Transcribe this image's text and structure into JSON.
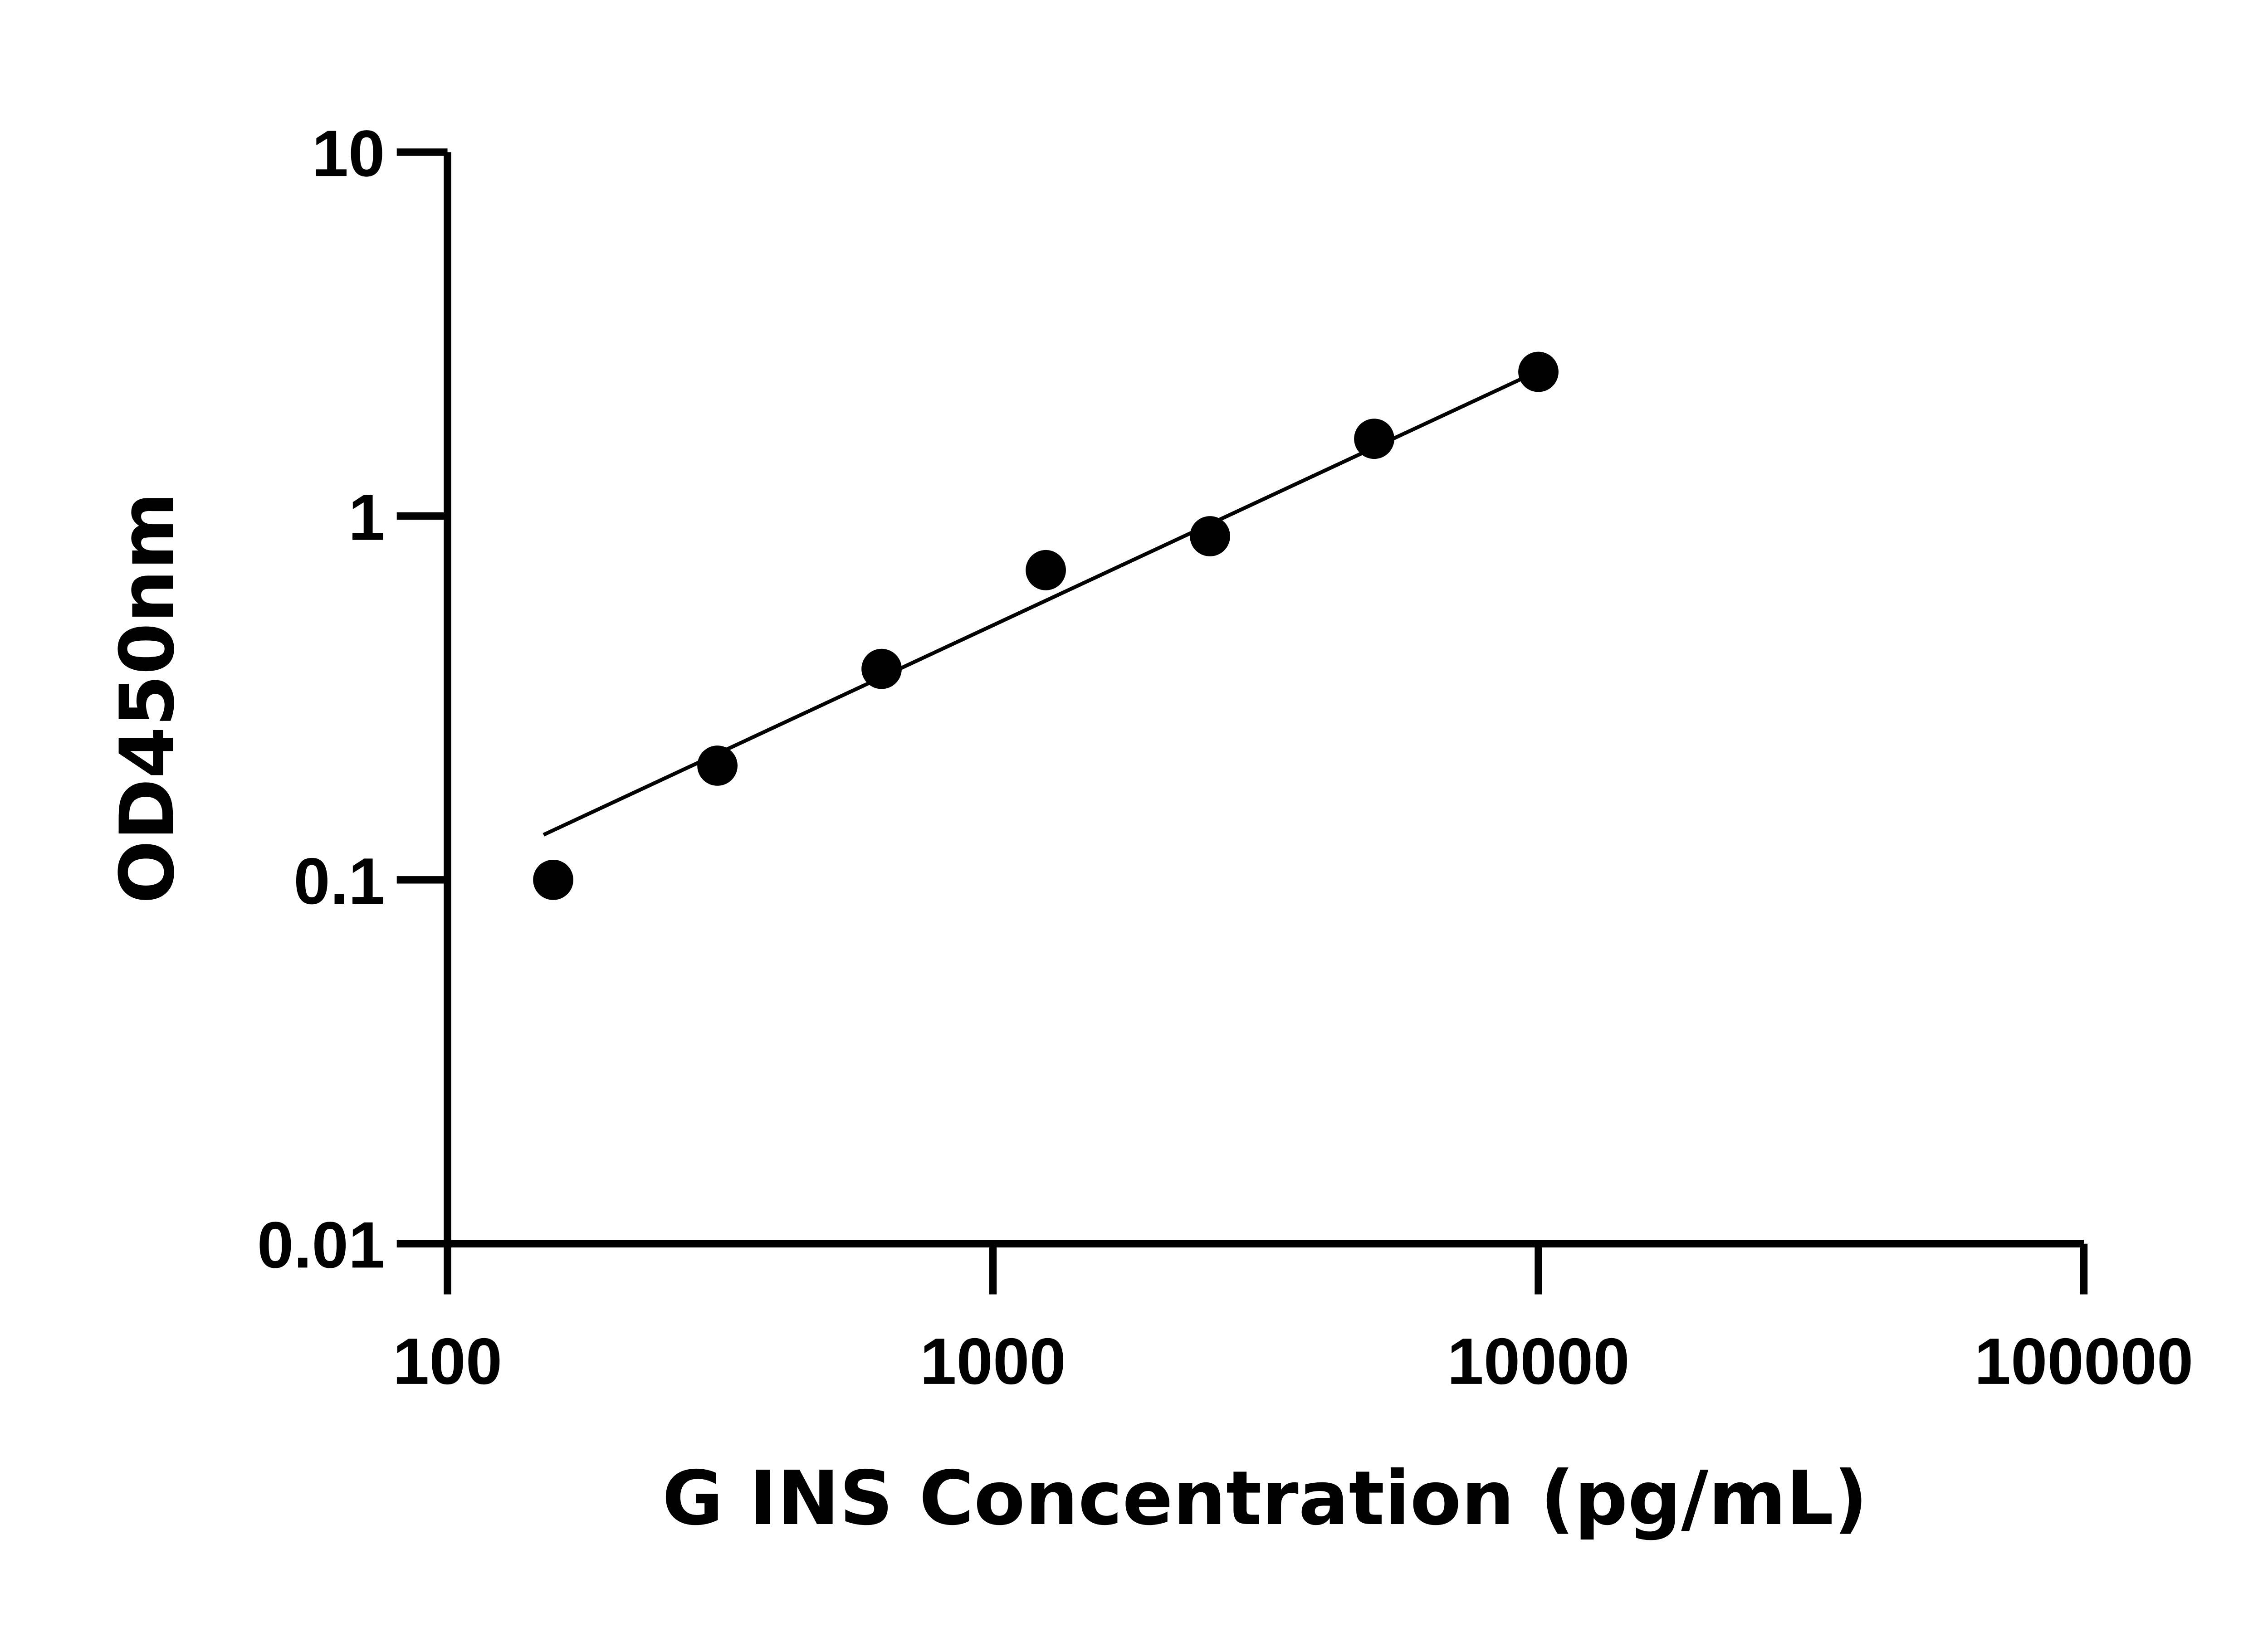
{
  "chart_data": {
    "type": "scatter",
    "title": "",
    "xlabel": "G INS Concentration (pg/mL)",
    "ylabel": "OD450nm",
    "xscale": "log",
    "yscale": "log",
    "xlim": [
      100,
      100000
    ],
    "ylim": [
      0.01,
      10
    ],
    "x_ticks": [
      "100",
      "1000",
      "10000",
      "100000"
    ],
    "y_ticks": [
      "0.01",
      "0.1",
      "1",
      "10"
    ],
    "grid": false,
    "legend": "none",
    "points": [
      {
        "x": 156.25,
        "y": 0.1
      },
      {
        "x": 312.5,
        "y": 0.206
      },
      {
        "x": 625,
        "y": 0.38
      },
      {
        "x": 1250,
        "y": 0.71
      },
      {
        "x": 2500,
        "y": 0.88
      },
      {
        "x": 5000,
        "y": 1.63
      },
      {
        "x": 10000,
        "y": 2.49
      }
    ],
    "fit_line": {
      "x": [
        150,
        9300
      ],
      "y": [
        0.133,
        2.38
      ]
    },
    "colors": {
      "marker": "#000000",
      "line": "#000000",
      "axis": "#000000"
    }
  }
}
